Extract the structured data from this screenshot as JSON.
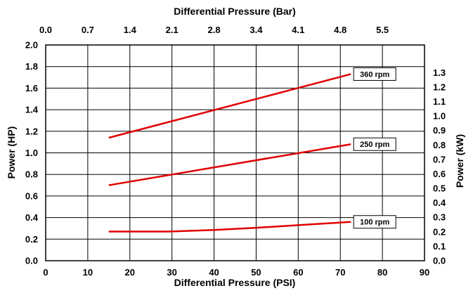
{
  "chart_data": {
    "type": "line",
    "xlabel": "Differential Pressure (PSI)",
    "x2label": "Differential Pressure (Bar)",
    "ylabel": "Power (HP)",
    "y2label": "Power (kW)",
    "xlim": [
      0,
      90
    ],
    "ylim": [
      0,
      2.0
    ],
    "grid": true,
    "x_ticks": [
      "0",
      "10",
      "20",
      "30",
      "40",
      "50",
      "60",
      "70",
      "80",
      "90"
    ],
    "x_tick_values": [
      0,
      10,
      20,
      30,
      40,
      50,
      60,
      70,
      80,
      90
    ],
    "x2_ticks": [
      "0.0",
      "0.7",
      "1.4",
      "2.1",
      "2.8",
      "3.4",
      "4.1",
      "4.8",
      "5.5"
    ],
    "x2_tick_psi": [
      0,
      10,
      20,
      30,
      40,
      50,
      60,
      70,
      80
    ],
    "y_ticks": [
      "0.0",
      "0.2",
      "0.4",
      "0.6",
      "0.8",
      "1.0",
      "1.2",
      "1.4",
      "1.6",
      "1.8",
      "2.0"
    ],
    "y_tick_values": [
      0,
      0.2,
      0.4,
      0.6,
      0.8,
      1.0,
      1.2,
      1.4,
      1.6,
      1.8,
      2.0
    ],
    "y2_ticks": [
      "0.0",
      "0.1",
      "0.2",
      "0.3",
      "0.4",
      "0.5",
      "0.6",
      "0.7",
      "0.8",
      "0.9",
      "1.0",
      "1.1",
      "1.2",
      "1.3"
    ],
    "y2_tick_kw": [
      0,
      0.1,
      0.2,
      0.3,
      0.4,
      0.5,
      0.6,
      0.7,
      0.8,
      0.9,
      1.0,
      1.1,
      1.2,
      1.3
    ],
    "line_color": "#e00000",
    "series": [
      {
        "name": "360 rpm",
        "x": [
          15,
          72.5
        ],
        "y": [
          1.14,
          1.73
        ]
      },
      {
        "name": "250 rpm",
        "x": [
          15,
          72.5
        ],
        "y": [
          0.7,
          1.08
        ]
      },
      {
        "name": "100 rpm",
        "x": [
          15,
          20,
          29,
          40,
          50,
          60,
          72.5
        ],
        "y": [
          0.27,
          0.27,
          0.27,
          0.285,
          0.305,
          0.33,
          0.36
        ]
      }
    ]
  }
}
